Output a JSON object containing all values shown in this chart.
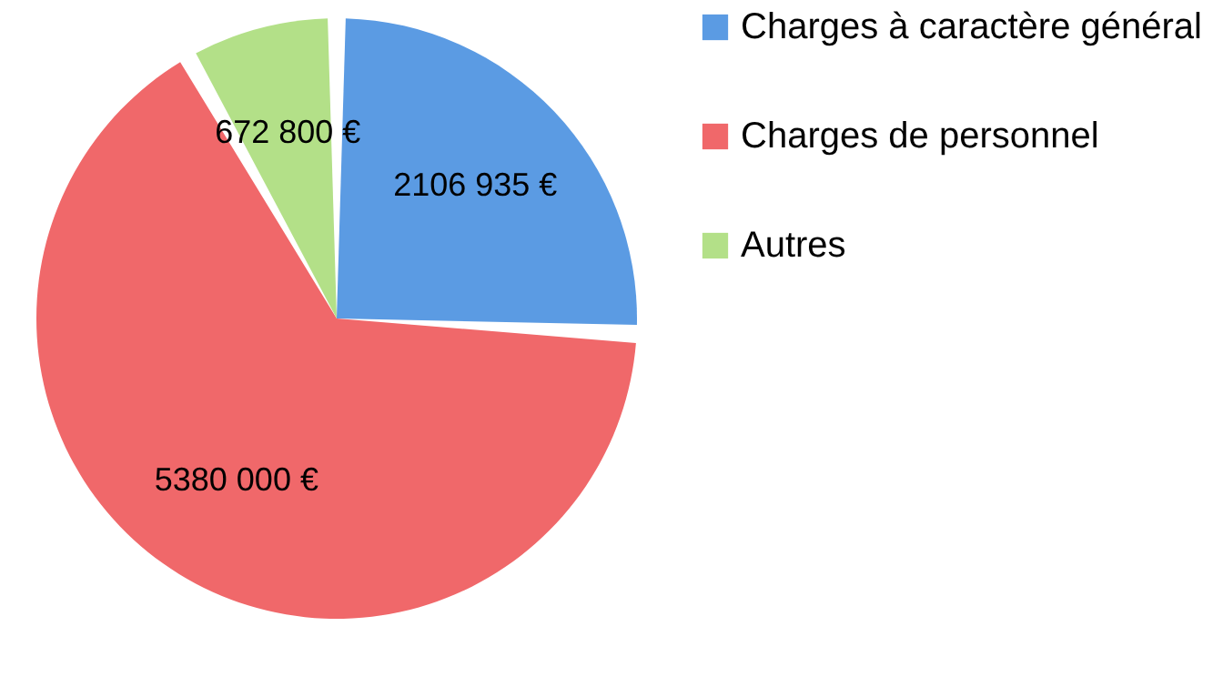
{
  "chart_data": {
    "type": "pie",
    "categories": [
      "Charges à caractère général",
      "Charges de personnel",
      "Autres"
    ],
    "values": [
      2106935,
      5380000,
      672800
    ],
    "value_labels": [
      "2106 935 €",
      "5380 000 €",
      "672 800 €"
    ],
    "colors": [
      "#5b9be3",
      "#f0686a",
      "#b3e088"
    ],
    "legend": "right"
  }
}
